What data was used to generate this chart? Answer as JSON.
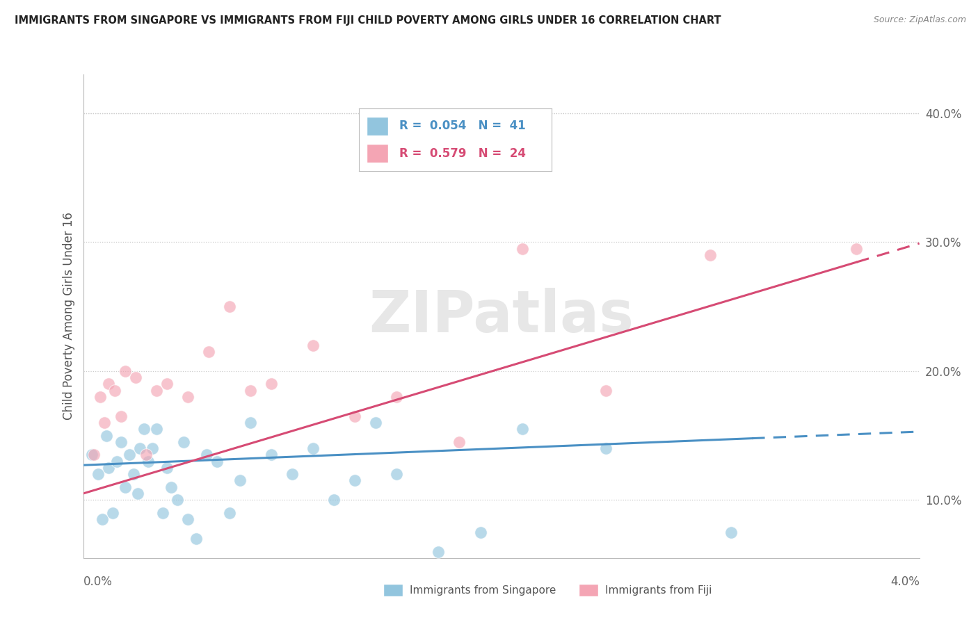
{
  "title": "IMMIGRANTS FROM SINGAPORE VS IMMIGRANTS FROM FIJI CHILD POVERTY AMONG GIRLS UNDER 16 CORRELATION CHART",
  "source": "Source: ZipAtlas.com",
  "ylabel": "Child Poverty Among Girls Under 16",
  "xlim": [
    0.0,
    4.0
  ],
  "ylim": [
    5.5,
    43.0
  ],
  "yticks": [
    10.0,
    20.0,
    30.0,
    40.0
  ],
  "ytick_labels": [
    "10.0%",
    "20.0%",
    "30.0%",
    "40.0%"
  ],
  "watermark": "ZIPatlas",
  "legend_r1": "0.054",
  "legend_n1": "41",
  "legend_r2": "0.579",
  "legend_n2": "24",
  "color_singapore": "#92c5de",
  "color_fiji": "#f4a5b4",
  "color_singapore_line": "#4a90c4",
  "color_fiji_line": "#d64b74",
  "singapore_x": [
    0.04,
    0.07,
    0.09,
    0.11,
    0.12,
    0.14,
    0.16,
    0.18,
    0.2,
    0.22,
    0.24,
    0.26,
    0.27,
    0.29,
    0.31,
    0.33,
    0.35,
    0.38,
    0.4,
    0.42,
    0.45,
    0.48,
    0.5,
    0.54,
    0.59,
    0.64,
    0.7,
    0.75,
    0.8,
    0.9,
    1.0,
    1.1,
    1.2,
    1.3,
    1.4,
    1.5,
    1.7,
    1.9,
    2.1,
    2.5,
    3.1
  ],
  "singapore_y": [
    13.5,
    12.0,
    8.5,
    15.0,
    12.5,
    9.0,
    13.0,
    14.5,
    11.0,
    13.5,
    12.0,
    10.5,
    14.0,
    15.5,
    13.0,
    14.0,
    15.5,
    9.0,
    12.5,
    11.0,
    10.0,
    14.5,
    8.5,
    7.0,
    13.5,
    13.0,
    9.0,
    11.5,
    16.0,
    13.5,
    12.0,
    14.0,
    10.0,
    11.5,
    16.0,
    12.0,
    6.0,
    7.5,
    15.5,
    14.0,
    7.5
  ],
  "fiji_x": [
    0.05,
    0.08,
    0.1,
    0.12,
    0.15,
    0.18,
    0.2,
    0.25,
    0.3,
    0.35,
    0.4,
    0.5,
    0.6,
    0.7,
    0.8,
    0.9,
    1.1,
    1.3,
    1.5,
    1.8,
    2.1,
    2.5,
    3.0,
    3.7
  ],
  "fiji_y": [
    13.5,
    18.0,
    16.0,
    19.0,
    18.5,
    16.5,
    20.0,
    19.5,
    13.5,
    18.5,
    19.0,
    18.0,
    21.5,
    25.0,
    18.5,
    19.0,
    22.0,
    16.5,
    18.0,
    14.5,
    29.5,
    18.5,
    29.0,
    29.5
  ],
  "sing_slope": 0.65,
  "sing_intercept": 12.7,
  "fiji_slope": 4.85,
  "fiji_intercept": 10.5,
  "solid_end_sing": 3.2,
  "solid_end_fiji": 3.7,
  "grid_color": "#cccccc",
  "grid_linestyle": ":",
  "spine_color": "#bbbbbb",
  "tick_label_color": "#666666",
  "ylabel_color": "#555555",
  "title_color": "#222222",
  "source_color": "#888888",
  "bottom_label_color": "#555555"
}
